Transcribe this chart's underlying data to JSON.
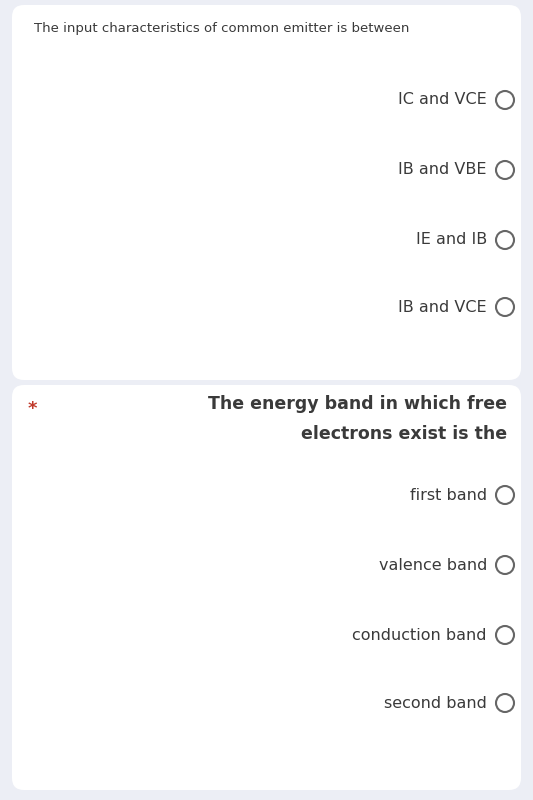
{
  "bg_color": "#eceef5",
  "card_color": "#ffffff",
  "text_color": "#3a3a3a",
  "star_color": "#c0392b",
  "circle_edge_color": "#666666",
  "q1_title": "The input characteristics of common emitter is between",
  "q1_options": [
    "IC and VCE",
    "IB and VBE",
    "IE and IB",
    "IB and VCE"
  ],
  "q2_title_line1": "The energy band in which free",
  "q2_title_line2": "electrons exist is the",
  "q2_options": [
    "first band",
    "valence band",
    "conduction band",
    "second band"
  ],
  "title_fontsize": 9.5,
  "option_fontsize": 11.5,
  "q2_title_fontsize": 12.5,
  "star_fontsize": 13
}
